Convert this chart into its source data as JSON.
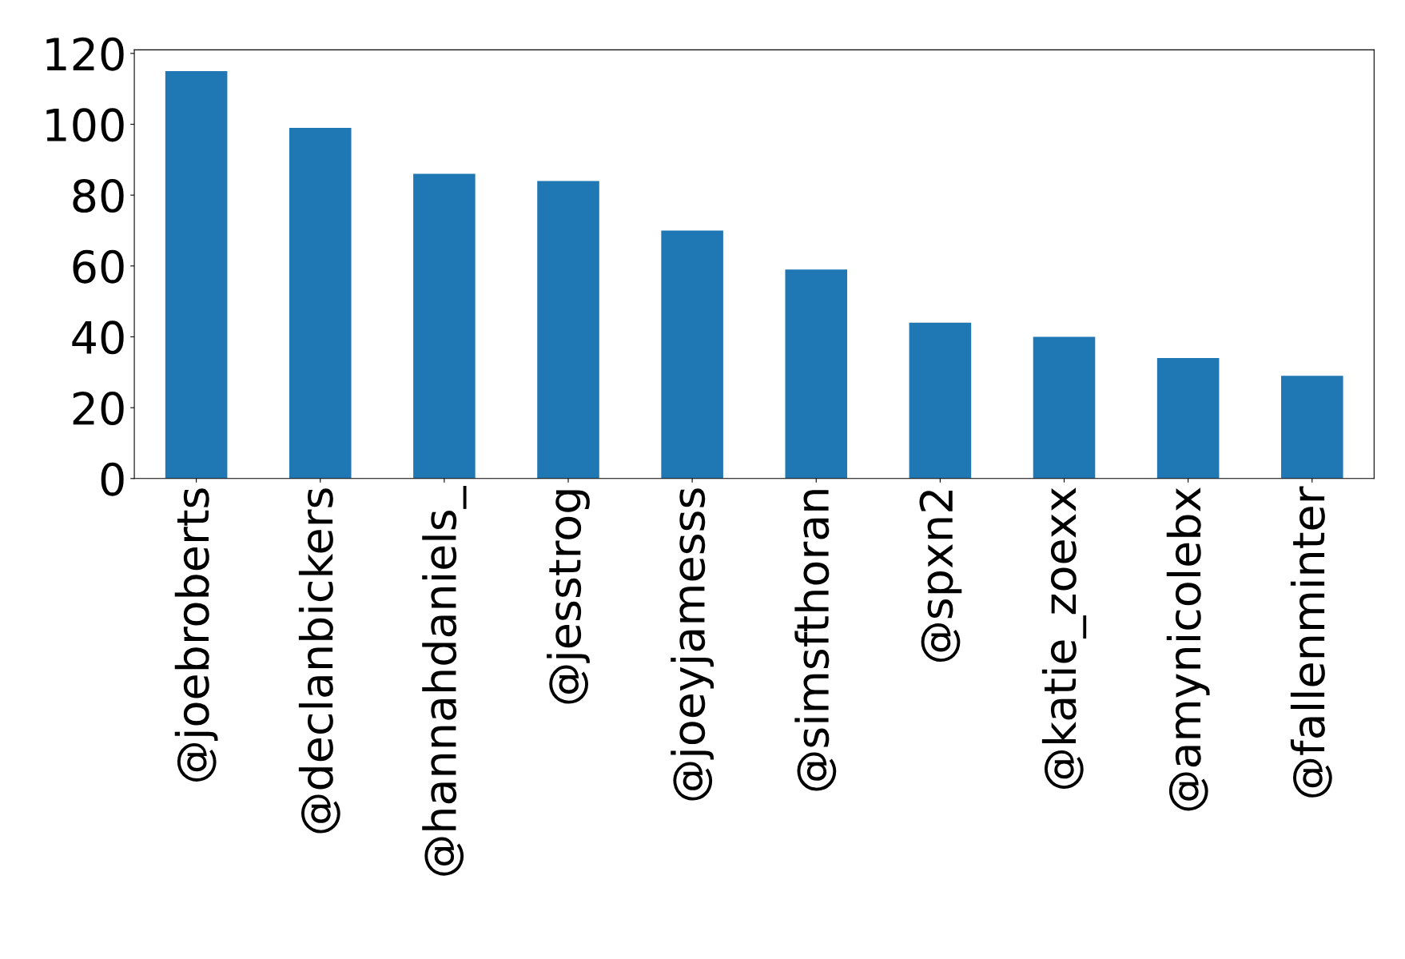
{
  "chart_data": {
    "type": "bar",
    "categories": [
      "@joebroberts",
      "@declanbickers",
      "@hannahdaniels_",
      "@jesstrog",
      "@joeyjamesss",
      "@simsfthoran",
      "@spxn2",
      "@katie_zoexx",
      "@amynicolebx",
      "@fallenminter"
    ],
    "values": [
      115,
      99,
      86,
      84,
      70,
      59,
      44,
      40,
      34,
      29
    ],
    "color": "#1f77b4",
    "ylim": [
      0,
      121
    ],
    "yticks": [
      0,
      20,
      40,
      60,
      80,
      100,
      120
    ],
    "grid": false
  }
}
